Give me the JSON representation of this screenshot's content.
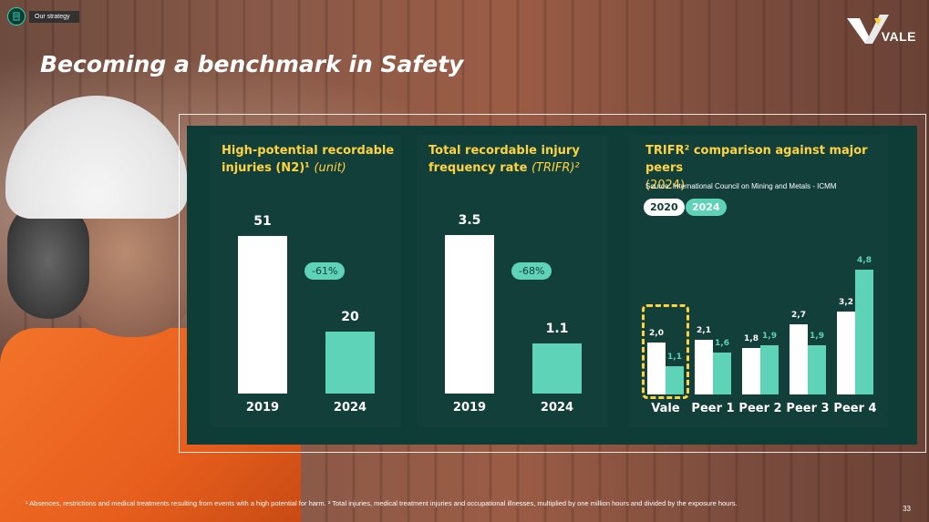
{
  "header": {
    "section_label": "Our strategy",
    "logo_text": "VALE",
    "title": "Becoming a benchmark in Safety"
  },
  "colors": {
    "panel": "#0e3c36",
    "accent_teal": "#5ed3b8",
    "title_yellow": "#ffd33d",
    "bar_white": "#ffffff"
  },
  "chart_data": [
    {
      "type": "bar",
      "title_line1": "High-potential recordable",
      "title_line2": "injuries (N2)¹",
      "title_unit": "(unit)",
      "categories": [
        "2019",
        "2024"
      ],
      "values": [
        51,
        20
      ],
      "value_labels": [
        "51",
        "20"
      ],
      "change_label": "-61%",
      "ylim": [
        0,
        60
      ]
    },
    {
      "type": "bar",
      "title_line1": "Total recordable injury",
      "title_line2": "frequency rate",
      "title_unit": "(TRIFR)²",
      "categories": [
        "2019",
        "2024"
      ],
      "values": [
        3.5,
        1.1
      ],
      "value_labels": [
        "3.5",
        "1.1"
      ],
      "change_label": "-68%",
      "ylim": [
        0,
        4.1
      ]
    },
    {
      "type": "bar",
      "title_line1": "TRIFR² comparison against major peers",
      "title_line2": "(2024)",
      "source": "Source: International Council on Mining and Metals - ICMM",
      "categories": [
        "Vale",
        "Peer 1",
        "Peer 2",
        "Peer 3",
        "Peer 4"
      ],
      "legend": [
        "2020",
        "2024"
      ],
      "series": [
        {
          "name": "2020",
          "values": [
            2.0,
            2.1,
            1.8,
            2.7,
            3.2
          ],
          "labels": [
            "2,0",
            "2,1",
            "1,8",
            "2,7",
            "3,2"
          ]
        },
        {
          "name": "2024",
          "values": [
            1.1,
            1.6,
            1.9,
            1.9,
            4.8
          ],
          "labels": [
            "1,1",
            "1,6",
            "1,9",
            "1,9",
            "4,8"
          ]
        }
      ],
      "highlight": "Vale",
      "ylim": [
        0,
        5.6
      ]
    }
  ],
  "footnote": "¹ Absences, restrictions and medical treatments resulting from events with a high potential for harm. ² Total injuries, medical treatment injuries and occupational illnesses, multiplied by one million hours and divided by the exposure hours.",
  "page_number": "33"
}
